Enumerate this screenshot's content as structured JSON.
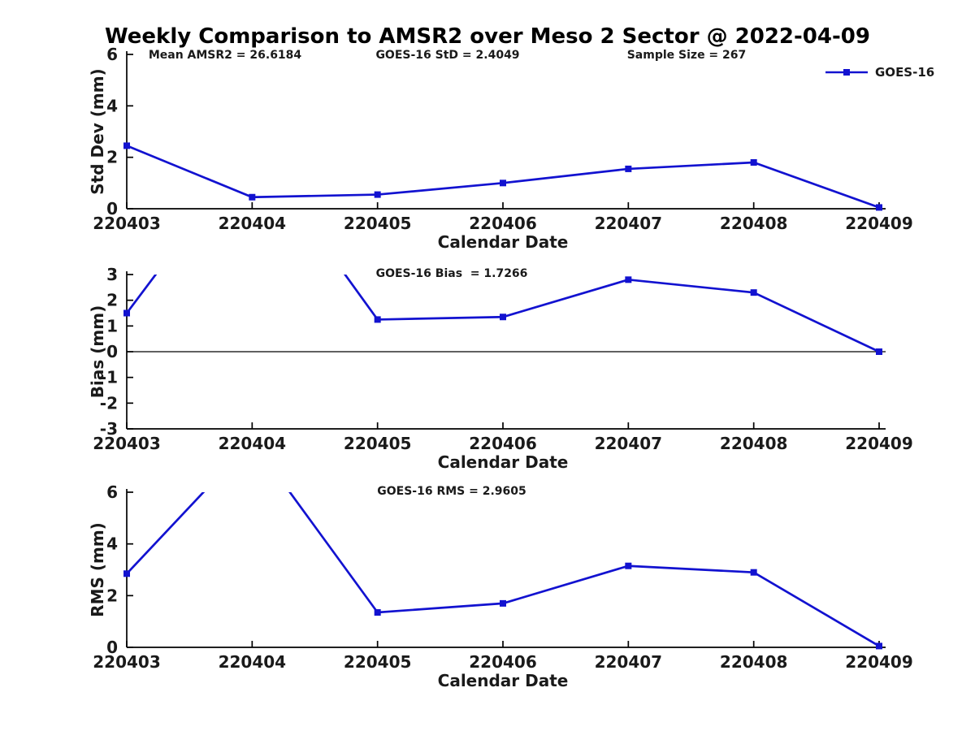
{
  "figure": {
    "title": "Weekly Comparison to AMSR2 over Meso 2 Sector @ 2022-04-09",
    "background_color": "#ffffff",
    "line_color": "#1212d0",
    "axis_color": "#000000",
    "text_color": "#1a1a1a"
  },
  "chart_data": [
    {
      "id": "stddev",
      "type": "line",
      "categories": [
        "220403",
        "220404",
        "220405",
        "220406",
        "220407",
        "220408",
        "220409"
      ],
      "series": [
        {
          "name": "GOES-16",
          "values": [
            2.45,
            0.45,
            0.55,
            1.0,
            1.55,
            1.8,
            0.05
          ]
        }
      ],
      "xlabel": "Calendar Date",
      "ylabel": "Std Dev (mm)",
      "ylim": [
        0,
        6
      ],
      "yticks": [
        0,
        2,
        4,
        6
      ],
      "grid": false,
      "zero_line": false,
      "annotations": [
        "Mean AMSR2 = 26.6184",
        "GOES-16 StD = 2.4049",
        "Sample Size = 267"
      ],
      "legend": {
        "position": "top-right"
      }
    },
    {
      "id": "bias",
      "type": "line",
      "categories": [
        "220403",
        "220404",
        "220405",
        "220406",
        "220407",
        "220408",
        "220409"
      ],
      "series": [
        {
          "name": "GOES-16",
          "values": [
            1.5,
            8.0,
            1.25,
            1.35,
            2.8,
            2.3,
            0.0
          ]
        }
      ],
      "xlabel": "Calendar Date",
      "ylabel": "Bias (mm)",
      "ylim": [
        -3,
        3
      ],
      "yticks": [
        -3,
        -2,
        -1,
        0,
        1,
        2,
        3
      ],
      "grid": false,
      "zero_line": true,
      "annotation": "GOES-16 Bias  = 1.7266",
      "offscale_points": [
        "220404"
      ]
    },
    {
      "id": "rms",
      "type": "line",
      "categories": [
        "220403",
        "220404",
        "220405",
        "220406",
        "220407",
        "220408",
        "220409"
      ],
      "series": [
        {
          "name": "GOES-16",
          "values": [
            2.85,
            8.0,
            1.35,
            1.7,
            3.15,
            2.9,
            0.05
          ]
        }
      ],
      "xlabel": "Calendar Date",
      "ylabel": "RMS (mm)",
      "ylim": [
        0,
        6
      ],
      "yticks": [
        0,
        2,
        4,
        6
      ],
      "grid": false,
      "zero_line": false,
      "annotation": "GOES-16 RMS = 2.9605",
      "offscale_points": [
        "220404"
      ]
    }
  ]
}
